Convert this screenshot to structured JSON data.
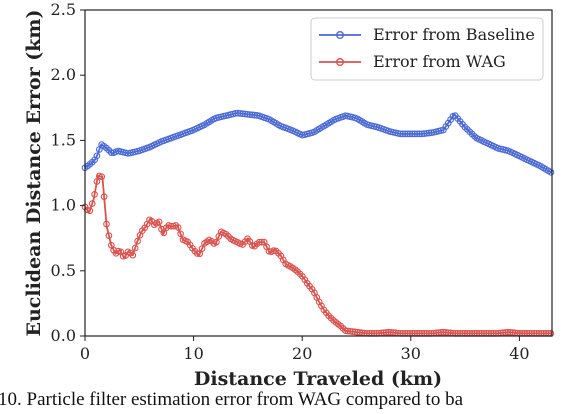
{
  "caption": "10.   Particle filter estimation error from WAG compared to ba",
  "chart_data": {
    "type": "line",
    "xlabel": "Distance Traveled (km)",
    "ylabel": "Euclidean Distance Error (km)",
    "xlim": [
      0,
      43
    ],
    "ylim": [
      0,
      2.5
    ],
    "xticks": [
      0,
      10,
      20,
      30,
      40
    ],
    "yticks": [
      0.0,
      0.5,
      1.0,
      1.5,
      2.0,
      2.5
    ],
    "legend_position": "top-right",
    "grid": false,
    "series": [
      {
        "name": "Error from Baseline",
        "color": "#4a6ad4",
        "x": [
          0,
          0.5,
          1.0,
          1.5,
          2.0,
          2.5,
          3.0,
          4.0,
          5.0,
          6.0,
          7.0,
          8.0,
          9.0,
          10.0,
          11.0,
          12.0,
          13.0,
          14.0,
          15.0,
          16.0,
          17.0,
          18.0,
          19.0,
          20.0,
          21.0,
          22.0,
          23.0,
          24.0,
          25.0,
          26.0,
          27.0,
          28.0,
          29.0,
          30.0,
          31.0,
          32.0,
          33.0,
          34.0,
          35.0,
          36.0,
          37.0,
          38.0,
          39.0,
          40.0,
          41.0,
          42.0,
          43.0
        ],
        "y": [
          1.29,
          1.32,
          1.36,
          1.47,
          1.44,
          1.4,
          1.42,
          1.4,
          1.42,
          1.45,
          1.49,
          1.52,
          1.55,
          1.58,
          1.62,
          1.67,
          1.69,
          1.71,
          1.7,
          1.69,
          1.66,
          1.61,
          1.58,
          1.54,
          1.56,
          1.61,
          1.66,
          1.69,
          1.67,
          1.62,
          1.6,
          1.57,
          1.55,
          1.55,
          1.55,
          1.56,
          1.58,
          1.7,
          1.6,
          1.52,
          1.48,
          1.44,
          1.42,
          1.38,
          1.34,
          1.3,
          1.25
        ]
      },
      {
        "name": "Error from WAG",
        "color": "#d9534f",
        "x": [
          0,
          0.4,
          0.8,
          1.2,
          1.6,
          2.0,
          2.4,
          2.8,
          3.2,
          3.6,
          4.0,
          4.4,
          4.8,
          5.2,
          5.6,
          6.0,
          6.4,
          6.8,
          7.2,
          7.6,
          8.0,
          8.5,
          9.0,
          9.5,
          10.0,
          10.5,
          11.0,
          11.5,
          12.0,
          12.5,
          13.0,
          13.5,
          14.0,
          14.5,
          15.0,
          15.5,
          16.0,
          16.5,
          17.0,
          17.5,
          18.0,
          18.5,
          19.0,
          19.5,
          20.0,
          20.5,
          21.0,
          21.5,
          22.0,
          22.5,
          23.0,
          23.5,
          24.0,
          25.0,
          26.0,
          27.0,
          28.0,
          29.0,
          30.0,
          31.0,
          32.0,
          33.0,
          34.0,
          35.0,
          36.0,
          37.0,
          38.0,
          39.0,
          40.0,
          41.0,
          42.0,
          43.0
        ],
        "y": [
          0.99,
          0.95,
          1.05,
          1.23,
          1.22,
          0.84,
          0.7,
          0.63,
          0.66,
          0.6,
          0.65,
          0.62,
          0.72,
          0.8,
          0.84,
          0.9,
          0.85,
          0.88,
          0.78,
          0.85,
          0.84,
          0.85,
          0.74,
          0.72,
          0.66,
          0.62,
          0.71,
          0.74,
          0.7,
          0.8,
          0.78,
          0.74,
          0.72,
          0.7,
          0.75,
          0.68,
          0.72,
          0.72,
          0.64,
          0.66,
          0.62,
          0.55,
          0.53,
          0.5,
          0.46,
          0.4,
          0.35,
          0.27,
          0.2,
          0.15,
          0.11,
          0.08,
          0.04,
          0.03,
          0.02,
          0.02,
          0.03,
          0.02,
          0.02,
          0.02,
          0.02,
          0.03,
          0.02,
          0.02,
          0.02,
          0.02,
          0.02,
          0.03,
          0.02,
          0.02,
          0.02,
          0.02
        ]
      }
    ]
  }
}
